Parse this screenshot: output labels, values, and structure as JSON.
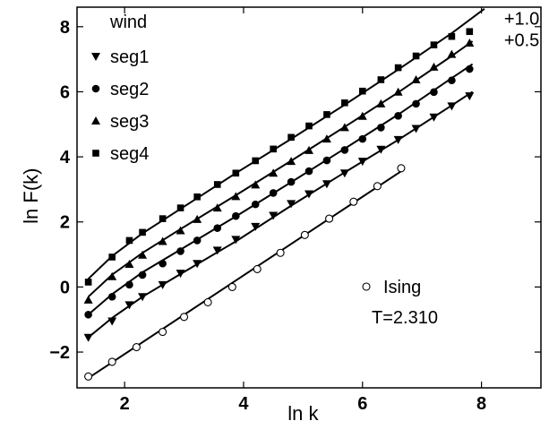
{
  "chart_data": {
    "type": "scatter",
    "title": "",
    "xlabel": "ln k",
    "ylabel": "ln F(k)",
    "xlim": [
      1.2,
      9.0
    ],
    "ylim": [
      -3.1,
      8.6
    ],
    "xticks": [
      2,
      4,
      6,
      8
    ],
    "xtick_labels": [
      "2",
      "4",
      "6",
      "8"
    ],
    "yticks": [
      -2,
      0,
      2,
      4,
      6,
      8
    ],
    "ytick_labels": [
      "−2",
      "0",
      "2",
      "4",
      "6",
      "8"
    ],
    "grid": false,
    "legend_upper": {
      "title": "wind",
      "position": "top-left"
    },
    "legend_lower": {
      "title": "Ising",
      "subtitle": "T=2.310",
      "position": "lower-right"
    },
    "annotations": [
      {
        "text": "+1.0",
        "x": 8.38,
        "y": 8.25
      },
      {
        "text": "+0.5",
        "x": 8.38,
        "y": 7.6
      }
    ],
    "x": [
      1.39,
      1.79,
      2.08,
      2.3,
      2.64,
      2.94,
      3.22,
      3.56,
      3.87,
      4.2,
      4.5,
      4.8,
      5.1,
      5.4,
      5.7,
      6.0,
      6.31,
      6.6,
      6.9,
      7.2,
      7.5,
      7.8
    ],
    "series": [
      {
        "name": "seg1",
        "marker": "triangle-down",
        "values": [
          -1.55,
          -1.05,
          -0.55,
          -0.3,
          0.07,
          0.42,
          0.72,
          1.13,
          1.46,
          1.86,
          2.2,
          2.56,
          2.86,
          3.17,
          3.5,
          3.86,
          4.23,
          4.53,
          4.87,
          5.22,
          5.56,
          5.87
        ],
        "fit": [
          [
            1.39,
            -1.55
          ],
          [
            1.79,
            -0.95
          ],
          [
            2.3,
            -0.3
          ],
          [
            2.94,
            0.4
          ],
          [
            3.87,
            1.4
          ],
          [
            4.8,
            2.5
          ],
          [
            5.7,
            3.52
          ],
          [
            6.6,
            4.52
          ],
          [
            7.5,
            5.58
          ],
          [
            7.85,
            6.0
          ]
        ]
      },
      {
        "name": "seg2",
        "marker": "circle",
        "values": [
          -0.85,
          -0.3,
          0.07,
          0.37,
          0.72,
          1.1,
          1.43,
          1.81,
          2.18,
          2.54,
          2.89,
          3.23,
          3.56,
          3.89,
          4.21,
          4.55,
          4.9,
          5.26,
          5.63,
          5.99,
          6.35,
          6.7
        ],
        "fit": [
          [
            1.39,
            -0.85
          ],
          [
            1.79,
            -0.22
          ],
          [
            2.3,
            0.45
          ],
          [
            2.94,
            1.15
          ],
          [
            3.87,
            2.17
          ],
          [
            4.8,
            3.22
          ],
          [
            5.7,
            4.25
          ],
          [
            6.6,
            5.3
          ],
          [
            7.5,
            6.42
          ],
          [
            7.85,
            6.85
          ]
        ]
      },
      {
        "name": "seg3",
        "marker": "triangle-up",
        "values": [
          -0.4,
          0.32,
          0.7,
          0.98,
          1.4,
          1.73,
          2.08,
          2.43,
          2.78,
          3.14,
          3.5,
          3.86,
          4.2,
          4.55,
          4.9,
          5.25,
          5.63,
          5.99,
          6.37,
          6.76,
          7.15,
          7.5
        ],
        "fit": [
          [
            1.39,
            -0.3
          ],
          [
            1.79,
            0.38
          ],
          [
            2.3,
            1.05
          ],
          [
            2.94,
            1.78
          ],
          [
            3.87,
            2.82
          ],
          [
            4.8,
            3.88
          ],
          [
            5.7,
            4.92
          ],
          [
            6.6,
            5.98
          ],
          [
            7.5,
            7.1
          ],
          [
            7.85,
            7.55
          ]
        ]
      },
      {
        "name": "seg4",
        "marker": "square",
        "values": [
          0.15,
          0.92,
          1.43,
          1.68,
          2.1,
          2.43,
          2.77,
          3.15,
          3.5,
          3.88,
          4.24,
          4.6,
          4.95,
          5.3,
          5.66,
          6.02,
          6.37,
          6.74,
          7.1,
          7.44,
          7.7,
          7.85
        ],
        "fit": [
          [
            1.39,
            0.25
          ],
          [
            1.79,
            0.95
          ],
          [
            2.3,
            1.65
          ],
          [
            2.94,
            2.4
          ],
          [
            3.87,
            3.5
          ],
          [
            4.8,
            4.55
          ],
          [
            5.7,
            5.6
          ],
          [
            6.6,
            6.68
          ],
          [
            7.5,
            7.8
          ],
          [
            8.05,
            8.55
          ]
        ]
      },
      {
        "name": "Ising",
        "marker": "open-circle",
        "x": [
          1.39,
          1.79,
          2.2,
          2.64,
          3.0,
          3.4,
          3.81,
          4.23,
          4.62,
          5.03,
          5.44,
          5.85,
          6.25,
          6.65
        ],
        "values": [
          -2.75,
          -2.3,
          -1.85,
          -1.38,
          -0.92,
          -0.47,
          0.0,
          0.55,
          1.05,
          1.6,
          2.1,
          2.62,
          3.1,
          3.65
        ],
        "fit": [
          [
            1.39,
            -2.8
          ],
          [
            6.7,
            3.62
          ]
        ]
      }
    ]
  }
}
